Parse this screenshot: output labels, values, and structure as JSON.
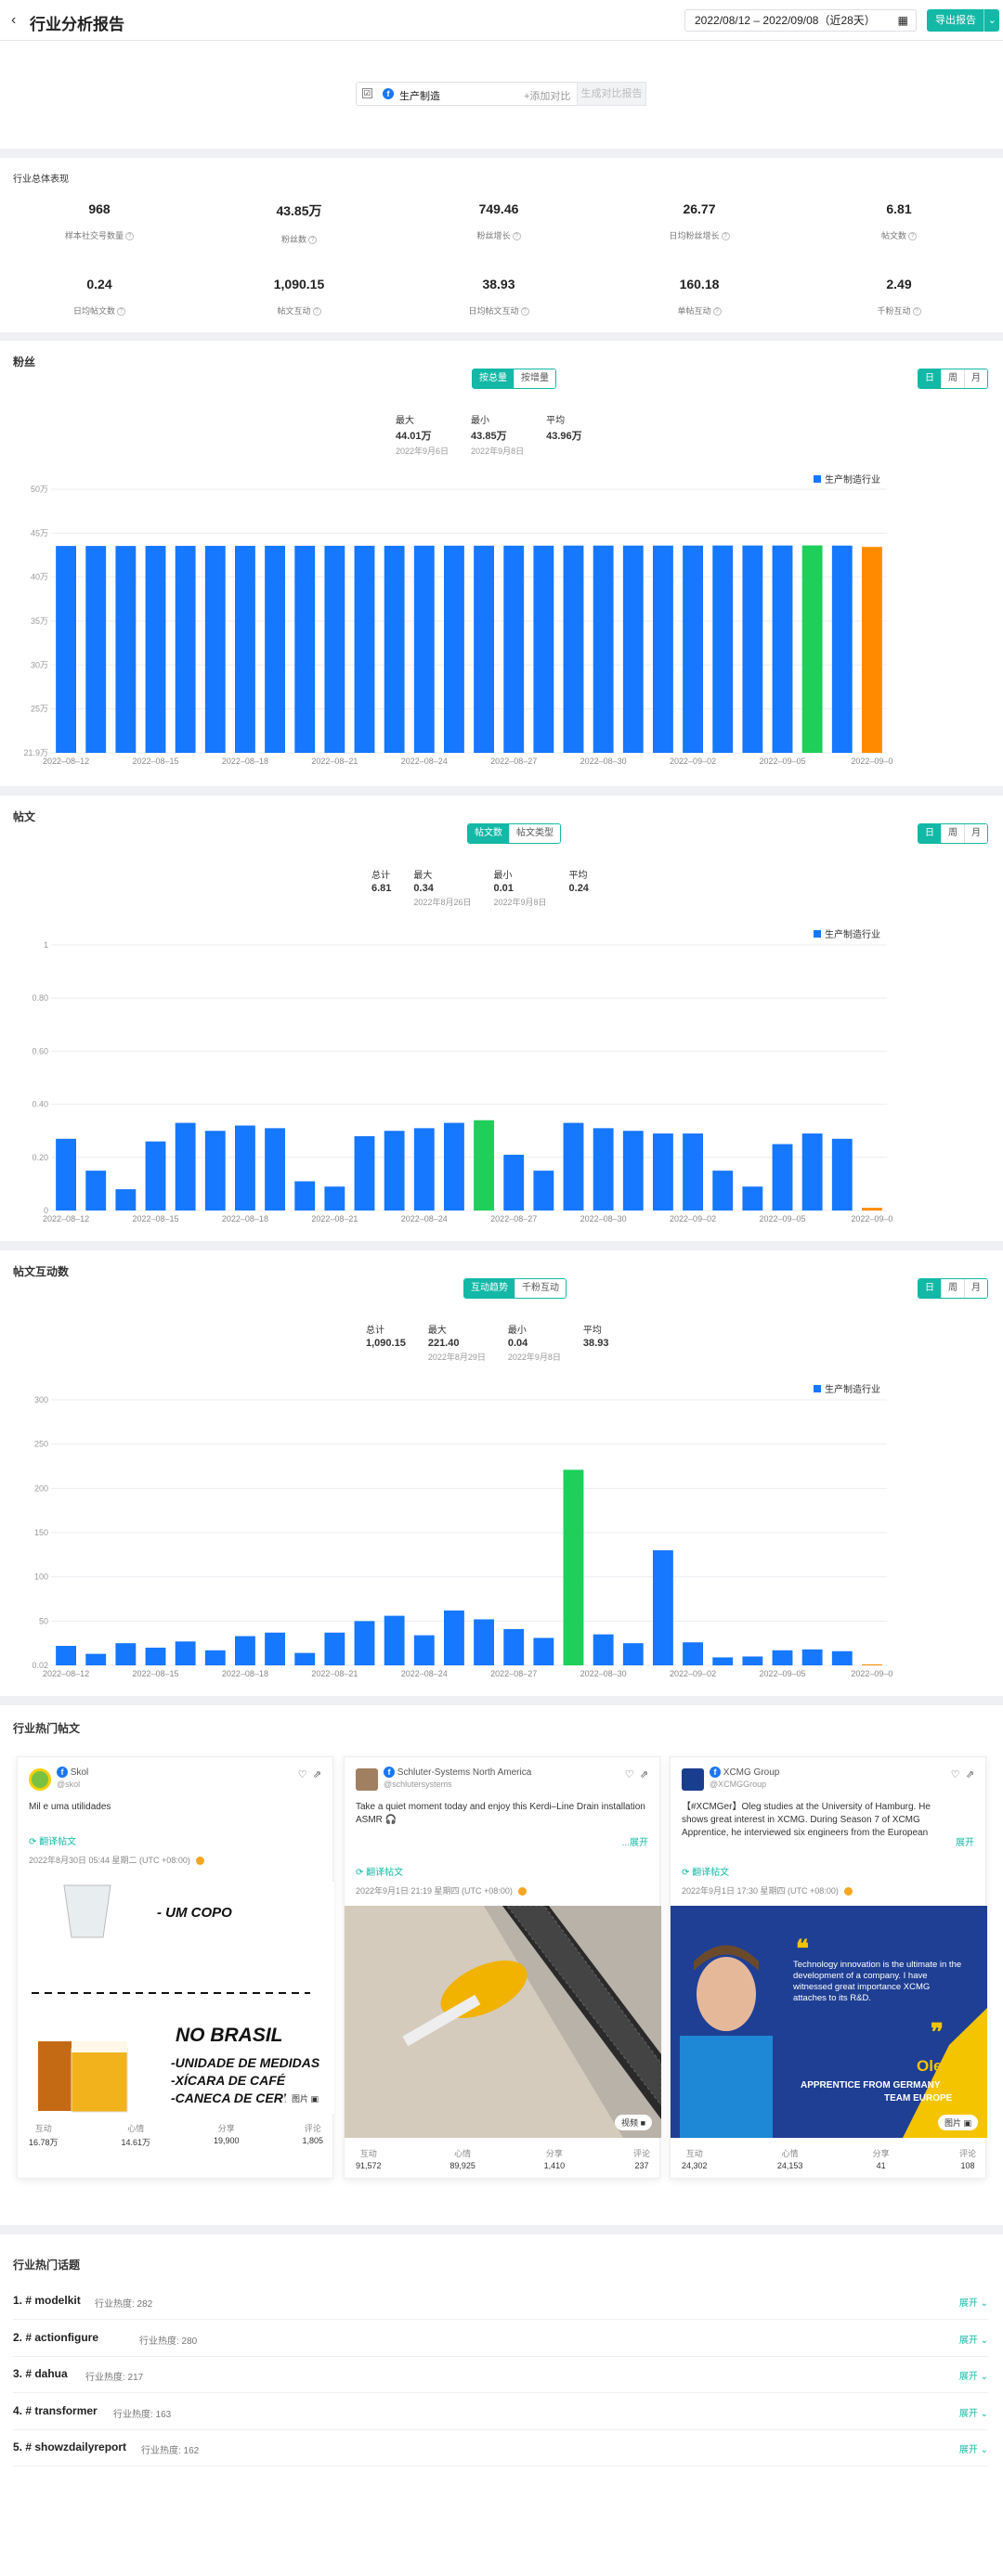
{
  "header": {
    "title": "行业分析报告",
    "date_range": "2022/08/12 – 2022/09/08（近28天）",
    "export_label": "导出报告"
  },
  "compare": {
    "name": "生产制造",
    "add": "+添加对比",
    "generate": "生成对比报告"
  },
  "overview": {
    "title": "行业总体表现",
    "kpis": [
      {
        "value": "968",
        "label": "样本社交号数量"
      },
      {
        "value": "43.85万",
        "label": "粉丝数"
      },
      {
        "value": "749.46",
        "label": "粉丝增长"
      },
      {
        "value": "26.77",
        "label": "日均粉丝增长"
      },
      {
        "value": "6.81",
        "label": "帖文数"
      },
      {
        "value": "0.24",
        "label": "日均帖文数"
      },
      {
        "value": "1,090.15",
        "label": "帖文互动"
      },
      {
        "value": "38.93",
        "label": "日均帖文互动"
      },
      {
        "value": "160.18",
        "label": "单帖互动"
      },
      {
        "value": "2.49",
        "label": "千粉互动"
      }
    ]
  },
  "period_tabs": [
    "日",
    "周",
    "月"
  ],
  "legend_label": "生产制造行业",
  "colors": {
    "accent": "#13b8a6",
    "bar": "#1677ff",
    "max": "#1ecf5a",
    "last": "#ff8a00"
  },
  "x_ticks": [
    "2022–08–12",
    "2022–08–15",
    "2022–08–18",
    "2022–08–21",
    "2022–08–24",
    "2022–08–27",
    "2022–08–30",
    "2022–09–02",
    "2022–09–05",
    "2022–09–0"
  ],
  "fans": {
    "title": "粉丝",
    "tabs": [
      "按总量",
      "按增量"
    ],
    "stats": [
      {
        "label": "最大",
        "value": "44.01万",
        "date": "2022年9月6日"
      },
      {
        "label": "最小",
        "value": "43.85万",
        "date": "2022年9月8日"
      },
      {
        "label": "平均",
        "value": "43.96万",
        "date": ""
      }
    ],
    "chart_data": {
      "type": "bar",
      "y_ticks": [
        "50万",
        "45万",
        "40万",
        "35万",
        "30万",
        "25万",
        "21.9万"
      ],
      "ylim": [
        219000,
        500000
      ],
      "values": [
        439500,
        439500,
        439500,
        439600,
        439600,
        439600,
        439600,
        439700,
        439700,
        439700,
        439700,
        439700,
        439800,
        439800,
        439800,
        439800,
        439800,
        439900,
        439900,
        439900,
        439900,
        439900,
        440000,
        440000,
        440000,
        440100,
        439900,
        438500
      ]
    }
  },
  "posts": {
    "title": "帖文",
    "tabs": [
      "帖文数",
      "帖文类型"
    ],
    "stats": [
      {
        "label": "总计",
        "value": "6.81",
        "date": ""
      },
      {
        "label": "最大",
        "value": "0.34",
        "date": "2022年8月26日"
      },
      {
        "label": "最小",
        "value": "0.01",
        "date": "2022年9月8日"
      },
      {
        "label": "平均",
        "value": "0.24",
        "date": ""
      }
    ],
    "chart_data": {
      "type": "bar",
      "y_ticks": [
        "1",
        "0.80",
        "0.60",
        "0.40",
        "0.20",
        "0"
      ],
      "ylim": [
        0,
        1
      ],
      "values": [
        0.27,
        0.15,
        0.08,
        0.26,
        0.33,
        0.3,
        0.32,
        0.31,
        0.11,
        0.09,
        0.28,
        0.3,
        0.31,
        0.33,
        0.34,
        0.21,
        0.15,
        0.33,
        0.31,
        0.3,
        0.29,
        0.29,
        0.15,
        0.09,
        0.25,
        0.29,
        0.27,
        0.01
      ]
    }
  },
  "interact": {
    "title": "帖文互动数",
    "tabs": [
      "互动趋势",
      "千粉互动"
    ],
    "stats": [
      {
        "label": "总计",
        "value": "1,090.15",
        "date": ""
      },
      {
        "label": "最大",
        "value": "221.40",
        "date": "2022年8月29日"
      },
      {
        "label": "最小",
        "value": "0.04",
        "date": "2022年9月8日"
      },
      {
        "label": "平均",
        "value": "38.93",
        "date": ""
      }
    ],
    "chart_data": {
      "type": "bar",
      "y_ticks": [
        "300",
        "250",
        "200",
        "150",
        "100",
        "50",
        "0.02"
      ],
      "ylim": [
        0,
        300
      ],
      "values": [
        22,
        13,
        25,
        20,
        27,
        17,
        33,
        37,
        14,
        37,
        50,
        56,
        34,
        62,
        52,
        41,
        31,
        221,
        35,
        25,
        130,
        26,
        9,
        10,
        17,
        18,
        16,
        0.04
      ]
    }
  },
  "hot_posts": {
    "title": "行业热门帖文",
    "cards": [
      {
        "name": "Skol",
        "handle": "@skol",
        "text": "Mil e uma utilidades",
        "translate": "翻译帖文",
        "time": "2022年8月30日 05:44 星期二 (UTC +08:00)",
        "media": "图片",
        "metrics": [
          [
            "互动",
            "16.78万"
          ],
          [
            "心情",
            "14.61万"
          ],
          [
            "分享",
            "19,900"
          ],
          [
            "评论",
            "1,805"
          ]
        ],
        "img_text": [
          "- UM COPO",
          "NO BRASIL",
          "-UNIDADE DE MEDIDAS",
          "-XÍCARA DE CAFÉ",
          "-CANECA DE CERVEJA"
        ]
      },
      {
        "name": "Schluter-Systems North America",
        "handle": "@schlutersystems",
        "text": "Take a quiet moment today and enjoy this Kerdi–Line Drain installation ASMR 🎧",
        "more": "...展开",
        "translate": "翻译帖文",
        "time": "2022年9月1日 21:19 星期四 (UTC +08:00)",
        "media": "视频",
        "metrics": [
          [
            "互动",
            "91,572"
          ],
          [
            "心情",
            "89,925"
          ],
          [
            "分享",
            "1,410"
          ],
          [
            "评论",
            "237"
          ]
        ]
      },
      {
        "name": "XCMG Group",
        "handle": "@XCMGGroup",
        "text": "【#XCMGer】Oleg studies at the University of Hamburg. He shows great interest in XCMG. During Season 7 of XCMG Apprentice, he interviewed six engineers from the European",
        "more": "展开",
        "translate": "翻译帖文",
        "time": "2022年9月1日 17:30 星期四 (UTC +08:00)",
        "media": "图片",
        "metrics": [
          [
            "互动",
            "24,302"
          ],
          [
            "心情",
            "24,153"
          ],
          [
            "分享",
            "41"
          ],
          [
            "评论",
            "108"
          ]
        ],
        "img_text": [
          "Technology innovation is the ultimate in the development of a company. I have witnessed great importance XCMG attaches to its R&D.",
          "Oleg",
          "APPRENTICE FROM GERMANY",
          "TEAM EUROPE"
        ]
      }
    ]
  },
  "topics": {
    "title": "行业热门话题",
    "expand": "展开",
    "items": [
      {
        "name": "1. # modelkit",
        "heat": "行业热度: 282"
      },
      {
        "name": "2. # actionfigure",
        "heat": "行业热度: 280"
      },
      {
        "name": "3. # dahua",
        "heat": "行业热度: 217"
      },
      {
        "name": "4. # transformer",
        "heat": "行业热度: 163"
      },
      {
        "name": "5. # showzdailyreport",
        "heat": "行业热度: 162"
      }
    ]
  }
}
